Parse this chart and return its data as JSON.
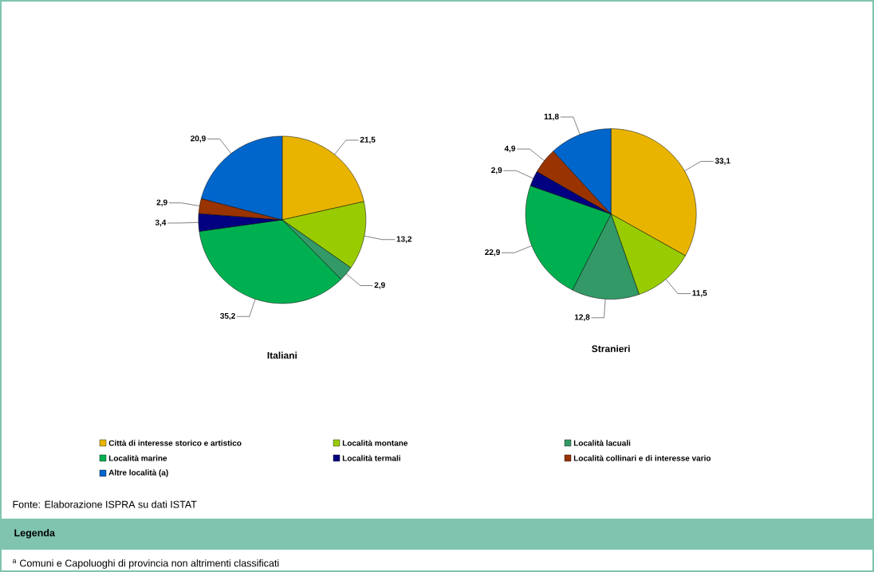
{
  "chart_data": [
    {
      "type": "pie",
      "title": "Italiani",
      "legend": "bottom",
      "categories": [
        "Città di interesse storico e artistico",
        "Località montane",
        "Località lacuali",
        "Località marine",
        "Località termali",
        "Località collinari e di interesse vario",
        "Altre località (a)"
      ],
      "values": [
        21.5,
        13.2,
        2.9,
        35.2,
        3.4,
        2.9,
        20.9
      ],
      "value_labels": [
        "21,5",
        "13,2",
        "2,9",
        "35,2",
        "3,4",
        "2,9",
        "20,9"
      ],
      "colors": [
        "#e8b400",
        "#99cc00",
        "#339966",
        "#00b050",
        "#000080",
        "#993300",
        "#0066cc"
      ]
    },
    {
      "type": "pie",
      "title": "Stranieri",
      "categories": [
        null,
        null,
        null,
        null,
        null,
        null,
        null
      ],
      "values": [
        33.1,
        11.5,
        12.8,
        22.9,
        2.9,
        4.9,
        11.8
      ],
      "value_labels": [
        "33,1",
        "11,5",
        "12,8",
        "22,9",
        "2,9",
        "4,9",
        "11,8"
      ],
      "colors": [
        "#e8b400",
        "#99cc00",
        "#339966",
        "#00b050",
        "#000080",
        "#993300",
        "#0066cc"
      ],
      "annotations": [
        "Fonte: Elaborazione ISPRA su dati ISTAT",
        "Legenda",
        "$^{a}$ Comuni e Capoluoghi di provincia non altrimenti classificati"
      ]
    }
  ]
}
